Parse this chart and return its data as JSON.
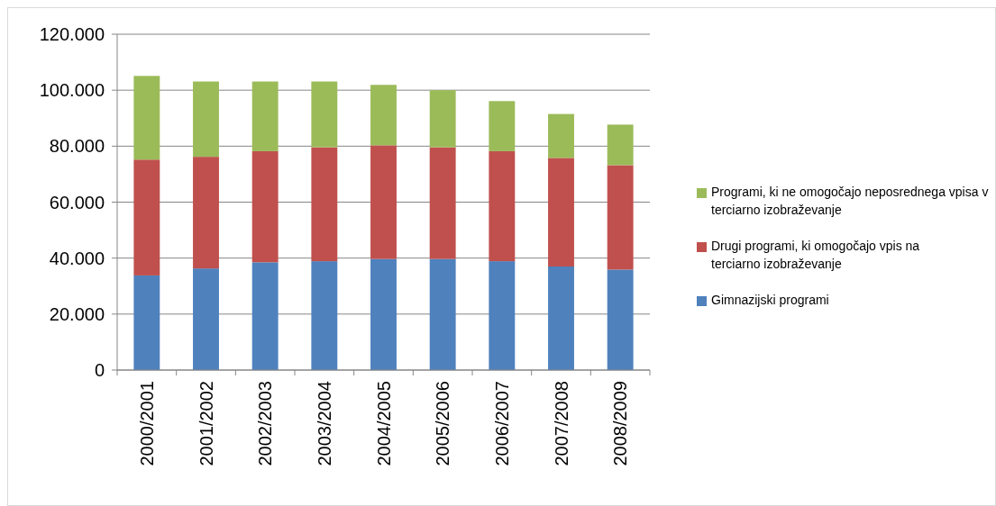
{
  "chart_data": {
    "type": "bar",
    "stacked": true,
    "categories": [
      "2000/2001",
      "2001/2002",
      "2002/2003",
      "2003/2004",
      "2004/2005",
      "2005/2006",
      "2006/2007",
      "2007/2008",
      "2008/2009"
    ],
    "series": [
      {
        "name": "Gimnazijski programi",
        "color": "#4f81bd",
        "values": [
          33800,
          36300,
          38500,
          38900,
          39700,
          39700,
          38900,
          37000,
          35900
        ]
      },
      {
        "name": "Drugi  programi, ki omogočajo vpis na terciarno izobraževanje",
        "color": "#c0504d",
        "values": [
          41400,
          39900,
          39700,
          40700,
          40600,
          39900,
          39300,
          38800,
          37300
        ]
      },
      {
        "name": "Programi, ki ne omogočajo neposrednega vpisa v terciarno izobraževanje",
        "color": "#9bbb59",
        "values": [
          29900,
          26900,
          24900,
          23500,
          21600,
          20400,
          17900,
          15700,
          14500
        ]
      }
    ],
    "ylim": [
      0,
      120000
    ],
    "yticks": [
      0,
      {
        "value": 20000,
        "label": "20.000"
      },
      {
        "value": 40000,
        "label": "40.000"
      },
      {
        "value": 60000,
        "label": "60.000"
      },
      {
        "value": 80000,
        "label": "80.000"
      },
      {
        "value": 100000,
        "label": "100.000"
      },
      {
        "value": 120000,
        "label": "120.000"
      }
    ],
    "grid": "y",
    "legend": "right"
  }
}
